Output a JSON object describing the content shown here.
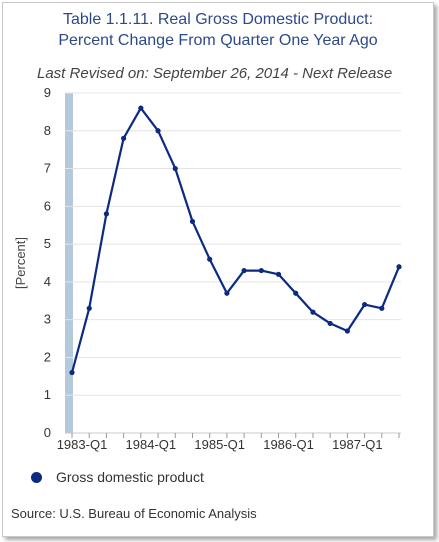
{
  "header": {
    "title_line1": "Table 1.1.11. Real Gross Domestic Product:",
    "title_line2": "Percent Change From Quarter One Year Ago",
    "revised": "Last Revised on: September 26, 2014 - Next Release"
  },
  "footer": {
    "source": "Source: U.S. Bureau of Economic Analysis"
  },
  "colors": {
    "line": "#0c2a7f",
    "band": "#b4c9dc",
    "grid": "#e4e4e4",
    "title": "#2e4a86"
  },
  "chart_data": {
    "type": "line",
    "title": "Table 1.1.11. Real Gross Domestic Product: Percent Change From Quarter One Year Ago",
    "ylabel": "[Percent]",
    "xlabel": "",
    "ylim": [
      0,
      9
    ],
    "yticks": [
      0,
      1,
      2,
      3,
      4,
      5,
      6,
      7,
      8,
      9
    ],
    "grid": true,
    "legend_position": "bottom-left",
    "xtick_labels": [
      "1983-Q1",
      "1984-Q1",
      "1985-Q1",
      "1986-Q1",
      "1987-Q1"
    ],
    "categories": [
      "1983-Q1",
      "1983-Q2",
      "1983-Q3",
      "1983-Q4",
      "1984-Q1",
      "1984-Q2",
      "1984-Q3",
      "1984-Q4",
      "1985-Q1",
      "1985-Q2",
      "1985-Q3",
      "1985-Q4",
      "1986-Q1",
      "1986-Q2",
      "1986-Q3",
      "1986-Q4",
      "1987-Q1",
      "1987-Q2",
      "1987-Q3",
      "1987-Q4"
    ],
    "series": [
      {
        "name": "Gross domestic product",
        "values": [
          1.6,
          3.3,
          5.8,
          7.8,
          8.6,
          8.0,
          7.0,
          5.6,
          4.6,
          3.7,
          4.3,
          4.3,
          4.2,
          3.7,
          3.2,
          2.9,
          2.7,
          3.4,
          3.3,
          4.4
        ]
      }
    ]
  }
}
